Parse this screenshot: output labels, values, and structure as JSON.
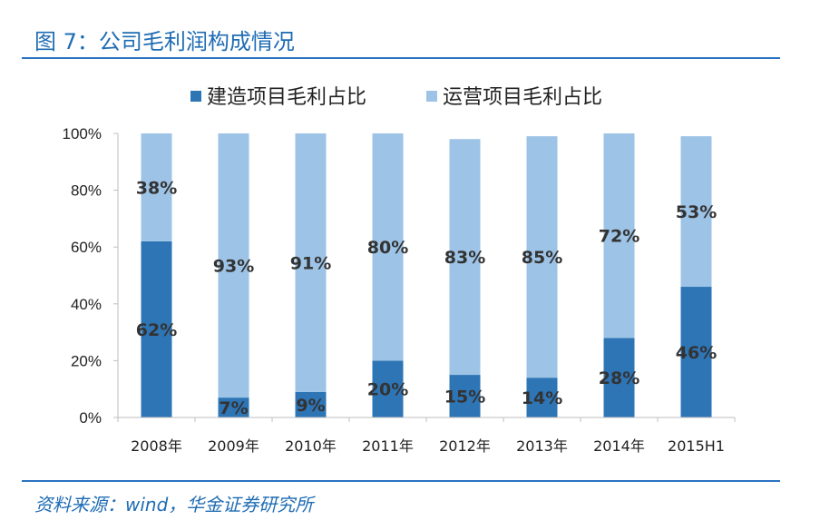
{
  "figure": {
    "title": "图 7：公司毛利润构成情况",
    "source": "资料来源：wind，华金证券研究所"
  },
  "chart_data": {
    "type": "bar",
    "stacked": true,
    "categories": [
      "2008年",
      "2009年",
      "2010年",
      "2011年",
      "2012年",
      "2013年",
      "2014年",
      "2015H1"
    ],
    "series": [
      {
        "name": "建造项目毛利占比",
        "values": [
          62,
          7,
          9,
          20,
          15,
          14,
          28,
          46
        ],
        "labels": [
          "62%",
          "7%",
          "9%",
          "20%",
          "15%",
          "14%",
          "28%",
          "46%"
        ],
        "color": "#2e75b6"
      },
      {
        "name": "运营项目毛利占比",
        "values": [
          38,
          93,
          91,
          80,
          83,
          85,
          72,
          53
        ],
        "labels": [
          "38%",
          "93%",
          "91%",
          "80%",
          "83%",
          "85%",
          "72%",
          "53%"
        ],
        "color": "#9dc3e6"
      }
    ],
    "ylim": [
      0,
      100
    ],
    "yticks": [
      "0%",
      "20%",
      "40%",
      "60%",
      "80%",
      "100%"
    ],
    "legend_position": "top",
    "grid": false
  }
}
